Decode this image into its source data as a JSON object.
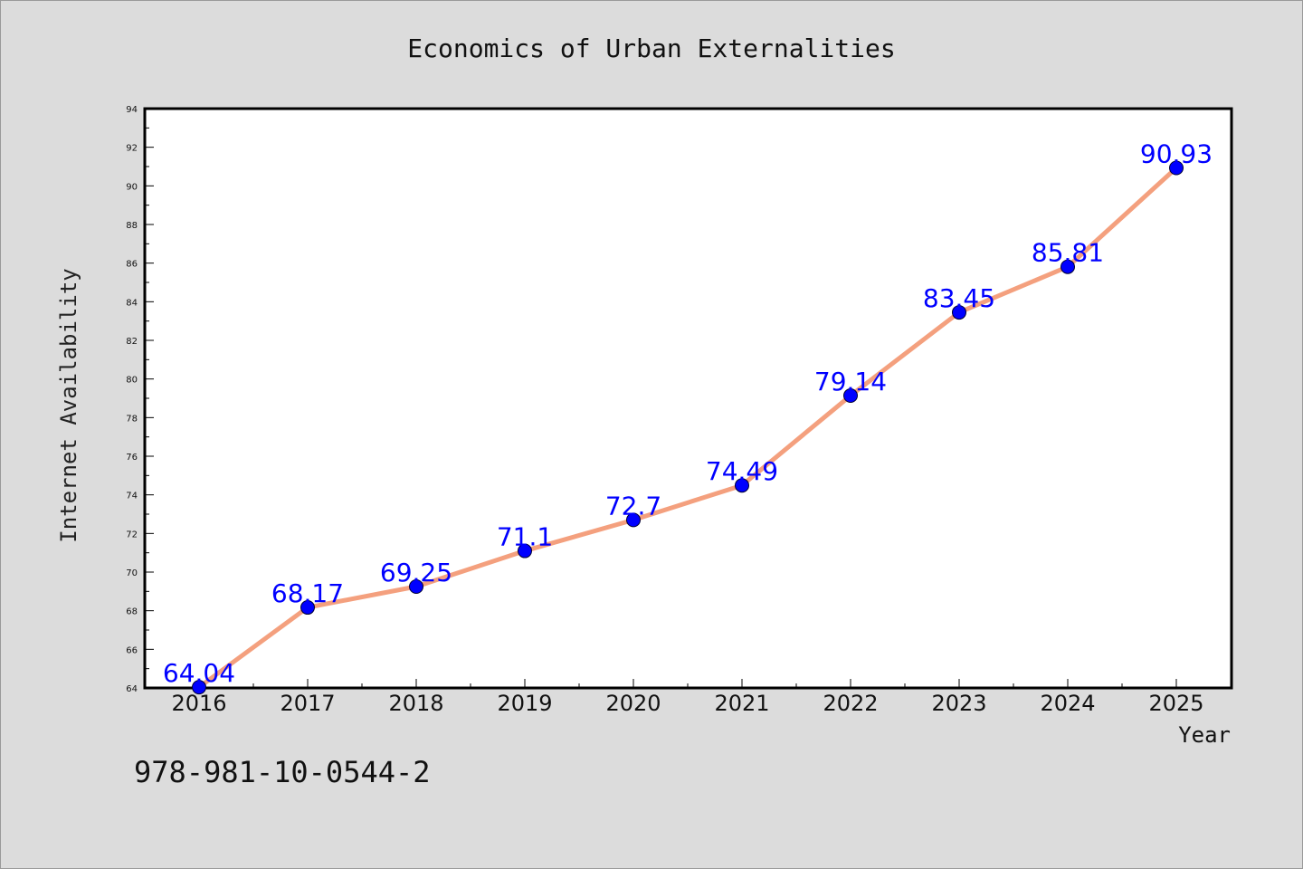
{
  "isbn": "978-981-10-0544-2",
  "colors": {
    "background": "#dcdcdc",
    "plot_background": "#ffffff",
    "line": "#f4a07e",
    "marker": "#0000ff",
    "data_label": "#0000ff"
  },
  "chart_data": {
    "type": "line",
    "title": "Economics of Urban Externalities",
    "xlabel": "Year",
    "ylabel": "Internet Availability",
    "categories": [
      "2016",
      "2017",
      "2018",
      "2019",
      "2020",
      "2021",
      "2022",
      "2023",
      "2024",
      "2025"
    ],
    "series": [
      {
        "values": [
          64.04,
          68.17,
          69.25,
          71.1,
          72.7,
          74.49,
          79.14,
          83.45,
          85.81,
          90.93
        ],
        "labels": [
          "64.04",
          "68.17",
          "69.25",
          "71.1",
          "72.7",
          "74.49",
          "79.14",
          "83.45",
          "85.81",
          "90.93"
        ]
      }
    ],
    "ylim": [
      64,
      94
    ],
    "yticks": [
      "64",
      "66",
      "68",
      "70",
      "72",
      "74",
      "76",
      "78",
      "80",
      "82",
      "84",
      "86",
      "88",
      "90",
      "92",
      "94"
    ],
    "grid": false,
    "legend": "none"
  }
}
